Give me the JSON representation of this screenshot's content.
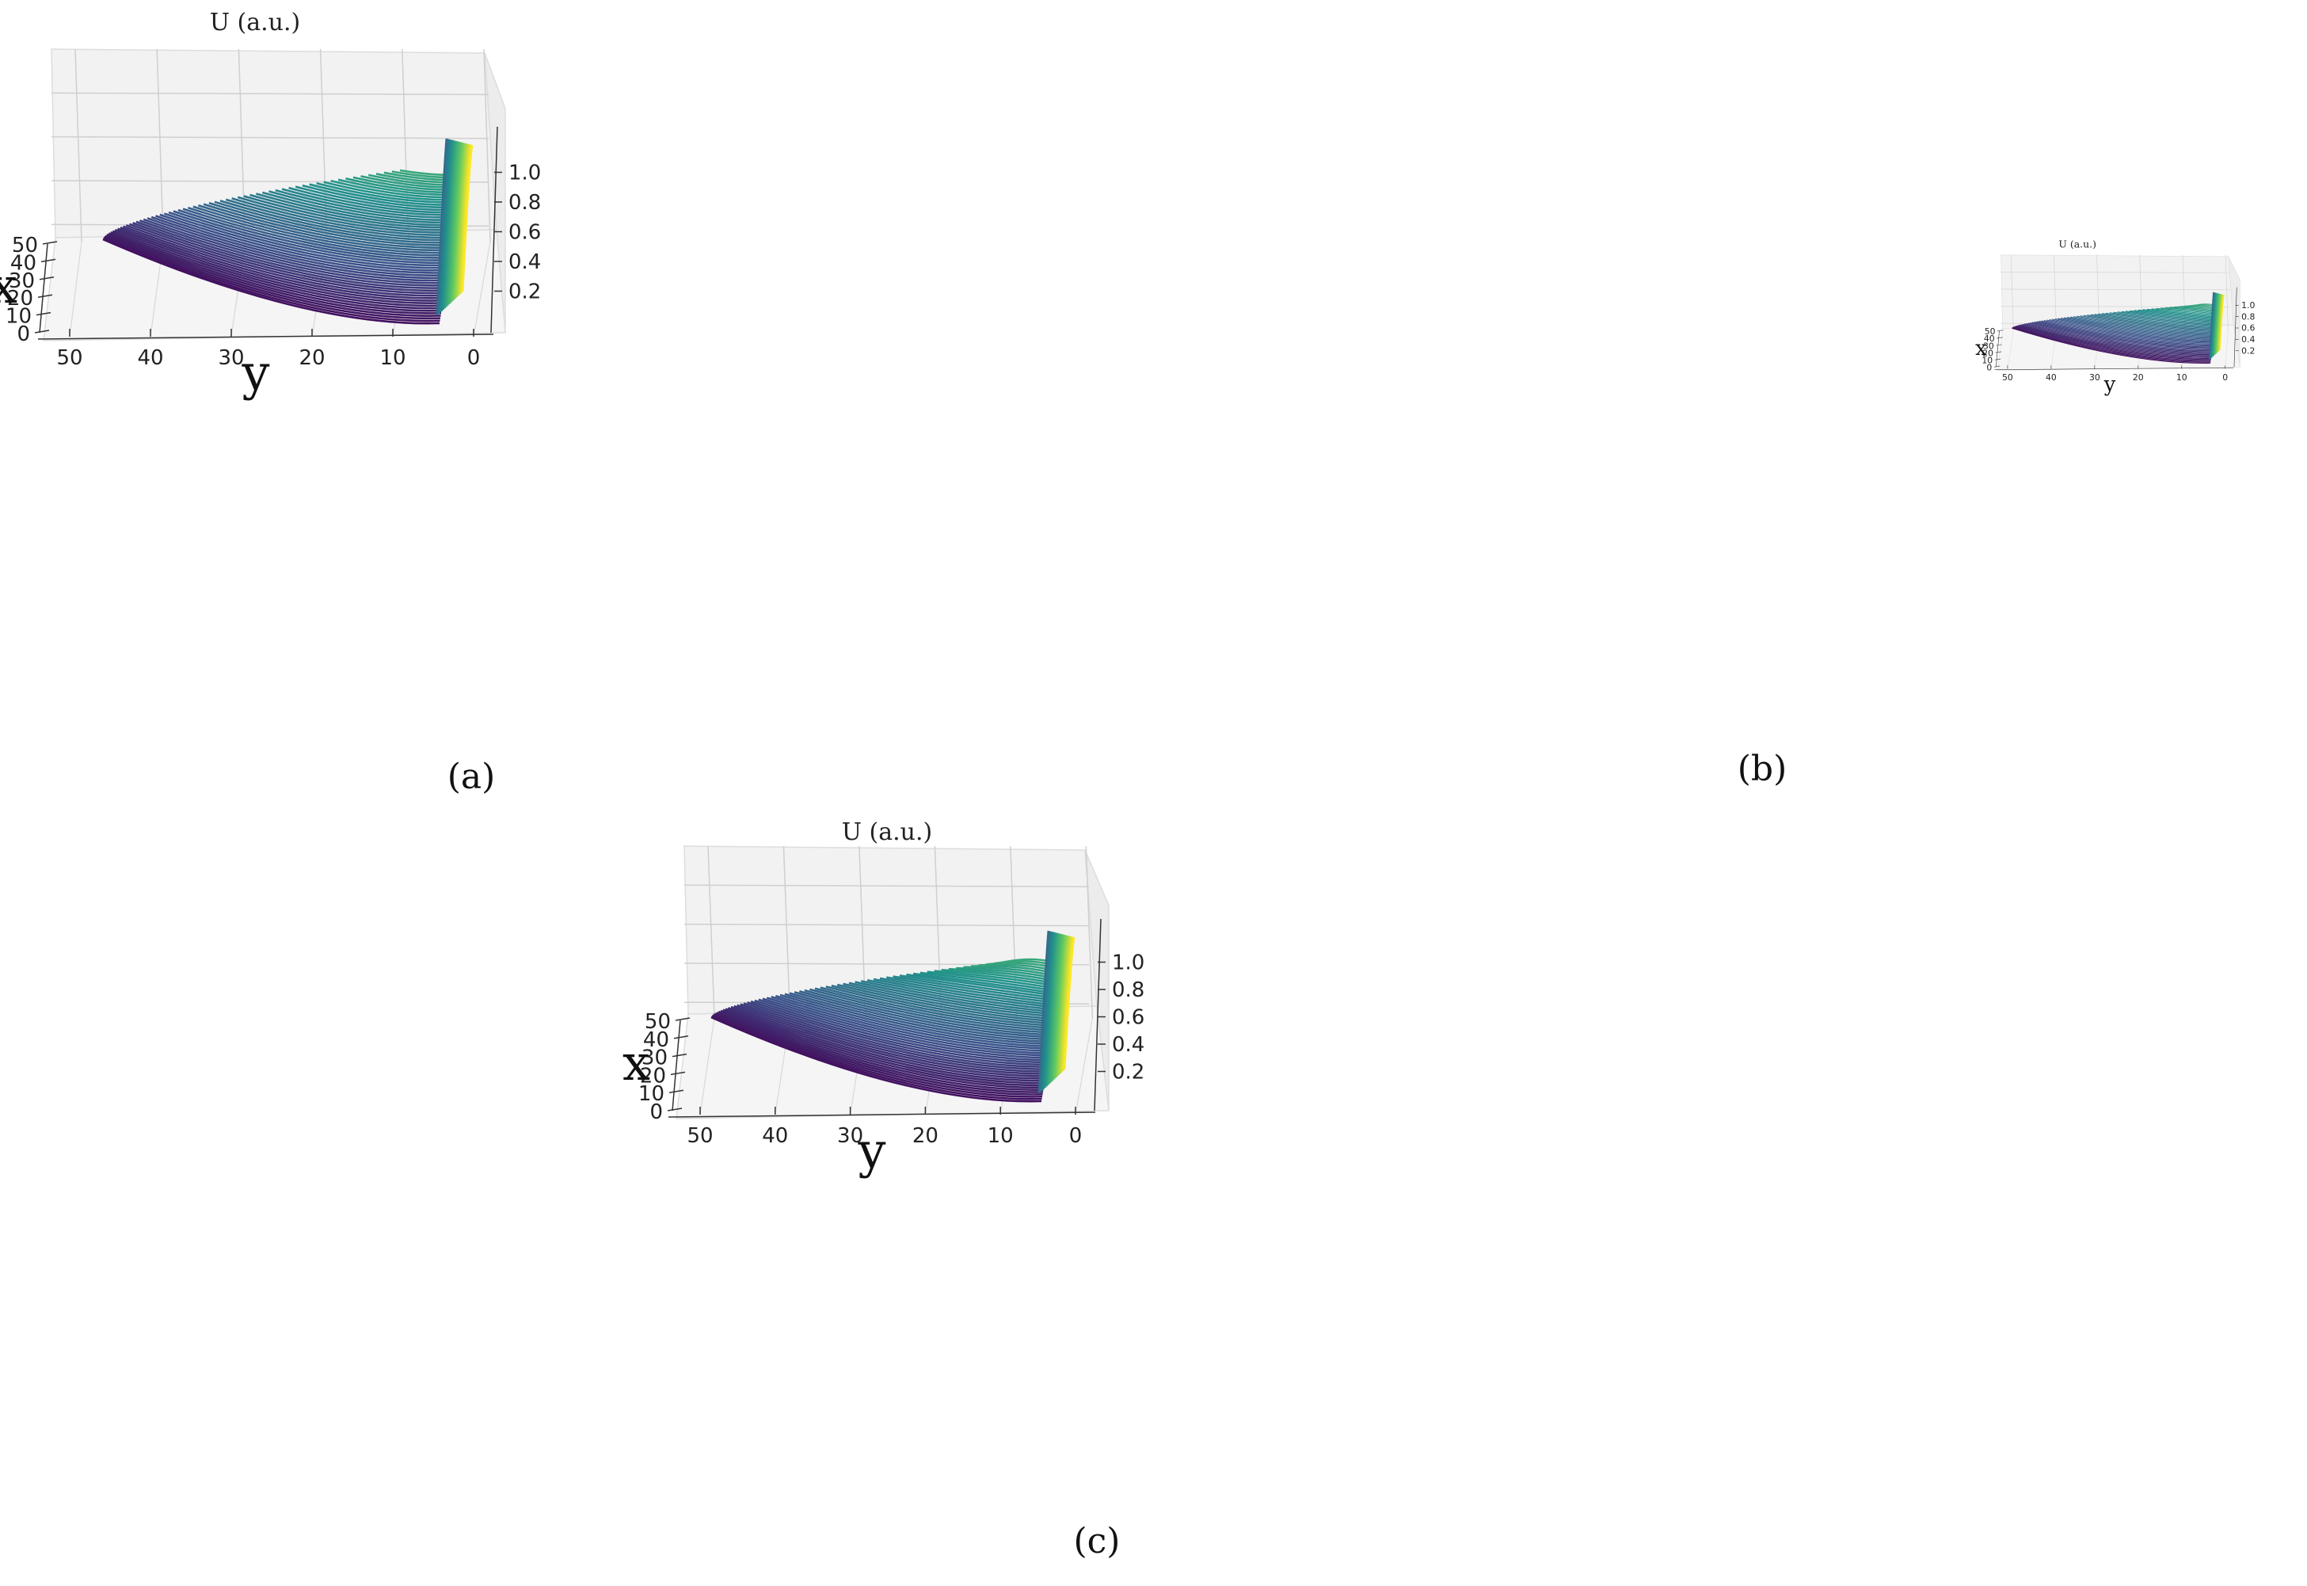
{
  "figure": {
    "captions": [
      "(a)",
      "(b)",
      "(c)"
    ]
  },
  "chart_data": [
    {
      "type": "surface3d",
      "panel": "(a)",
      "title": "U (a.u.)",
      "xlabel": "x",
      "ylabel": "y",
      "zlabel": "U (a.u.)",
      "x_ticks": [
        "0",
        "10",
        "20",
        "30",
        "40",
        "50"
      ],
      "y_ticks": [
        "50",
        "40",
        "30",
        "20",
        "10",
        "0"
      ],
      "z_ticks": [
        "0.2",
        "0.4",
        "0.6",
        "0.8",
        "1.0"
      ],
      "xlim": [
        0,
        55
      ],
      "ylim": [
        0,
        52
      ],
      "zlim": [
        0,
        1.2
      ],
      "colormap": "viridis",
      "colors": [
        "#440154",
        "#3b528b",
        "#21918c",
        "#5ec962",
        "#fde725"
      ],
      "peak": {
        "y": 0,
        "z": 1.05
      },
      "line_count": 60
    },
    {
      "type": "surface3d",
      "panel": "(b)",
      "title": "U (a.u.)",
      "xlabel": "x",
      "ylabel": "y",
      "zlabel": "U (a.u.)",
      "x_ticks": [
        "0",
        "10",
        "20",
        "30",
        "40",
        "50"
      ],
      "y_ticks": [
        "50",
        "40",
        "30",
        "20",
        "10",
        "0"
      ],
      "z_ticks": [
        "0.2",
        "0.4",
        "0.6",
        "0.8",
        "1.0"
      ],
      "xlim": [
        0,
        55
      ],
      "ylim": [
        0,
        52
      ],
      "zlim": [
        0,
        1.2
      ],
      "colormap": "viridis",
      "colors": [
        "#440154",
        "#3b528b",
        "#21918c",
        "#5ec962",
        "#fde725"
      ],
      "peak": {
        "y": 0,
        "z": 1.05
      },
      "line_count": 60
    },
    {
      "type": "surface3d",
      "panel": "(c)",
      "title": "U (a.u.)",
      "xlabel": "x",
      "ylabel": "y",
      "zlabel": "U (a.u.)",
      "x_ticks": [
        "0",
        "10",
        "20",
        "30",
        "40",
        "50"
      ],
      "y_ticks": [
        "50",
        "40",
        "30",
        "20",
        "10",
        "0"
      ],
      "z_ticks": [
        "0.2",
        "0.4",
        "0.6",
        "0.8",
        "1.0"
      ],
      "xlim": [
        0,
        55
      ],
      "ylim": [
        0,
        52
      ],
      "zlim": [
        0,
        1.2
      ],
      "colormap": "viridis",
      "colors": [
        "#440154",
        "#3b528b",
        "#21918c",
        "#5ec962",
        "#fde725"
      ],
      "peak": {
        "y": 0,
        "z": 1.05
      },
      "line_count": 60
    }
  ]
}
